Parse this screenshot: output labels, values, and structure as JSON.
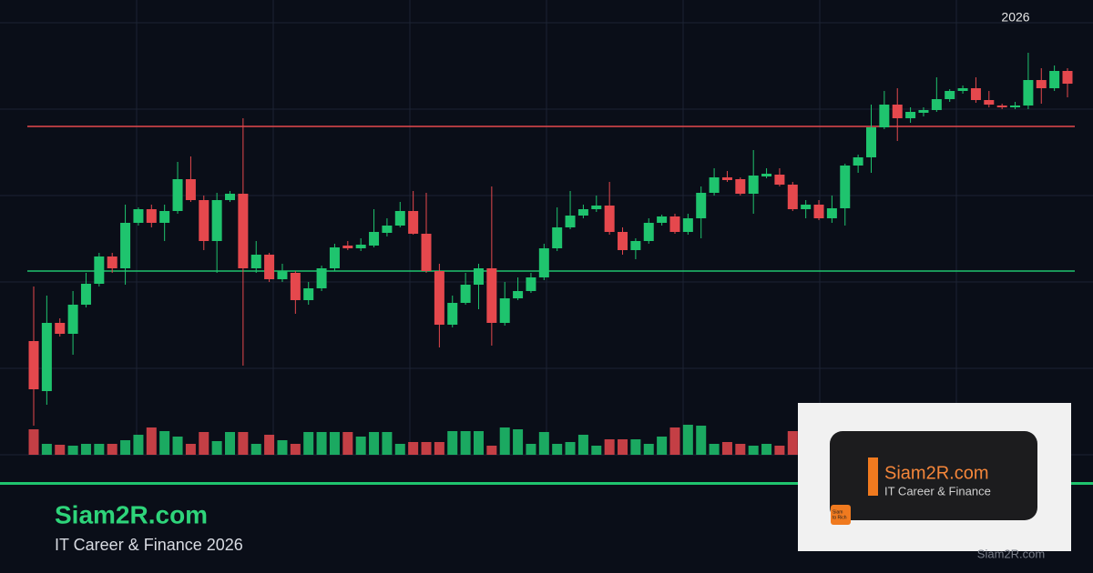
{
  "chart_data": {
    "type": "candlestick",
    "annotation": "2026",
    "up_color": "#1fc46e",
    "down_color": "#e5484d",
    "ylim": [
      0,
      470
    ],
    "volume_lim": [
      0,
      40
    ],
    "open": [
      95,
      40,
      115,
      103,
      135,
      158,
      188,
      175,
      225,
      240,
      225,
      238,
      273,
      250,
      205,
      250,
      257,
      175,
      190,
      163,
      170,
      140,
      153,
      175,
      200,
      197,
      200,
      214,
      222,
      238,
      213,
      172,
      113,
      137,
      157,
      175,
      115,
      142,
      150,
      165,
      197,
      220,
      233,
      240,
      244,
      215,
      195,
      205,
      225,
      232,
      215,
      230,
      258,
      275,
      273,
      257,
      276,
      278,
      267,
      240,
      245,
      230,
      241,
      288,
      297,
      330,
      355,
      340,
      346,
      349,
      361,
      370,
      373,
      360,
      354,
      352,
      354,
      382,
      373,
      392
    ],
    "high": [
      155,
      145,
      120,
      150,
      170,
      192,
      192,
      245,
      242,
      245,
      245,
      292,
      298,
      255,
      258,
      260,
      340,
      205,
      192,
      180,
      172,
      160,
      178,
      202,
      205,
      208,
      240,
      230,
      248,
      260,
      258,
      180,
      145,
      170,
      180,
      265,
      160,
      165,
      170,
      202,
      242,
      260,
      245,
      255,
      270,
      220,
      208,
      230,
      234,
      235,
      235,
      265,
      285,
      282,
      275,
      305,
      285,
      285,
      270,
      250,
      250,
      255,
      290,
      300,
      355,
      370,
      373,
      352,
      352,
      385,
      372,
      376,
      385,
      370,
      356,
      358,
      412,
      395,
      398,
      395
    ],
    "low": [
      2,
      25,
      100,
      80,
      132,
      155,
      170,
      157,
      222,
      220,
      205,
      235,
      248,
      195,
      170,
      248,
      68,
      170,
      160,
      160,
      125,
      135,
      150,
      172,
      195,
      194,
      198,
      210,
      220,
      212,
      170,
      88,
      110,
      135,
      130,
      90,
      112,
      140,
      148,
      162,
      194,
      218,
      230,
      237,
      212,
      190,
      185,
      202,
      222,
      213,
      212,
      208,
      255,
      270,
      255,
      235,
      274,
      265,
      238,
      230,
      228,
      225,
      222,
      280,
      280,
      328,
      315,
      335,
      342,
      347,
      358,
      367,
      357,
      352,
      350,
      350,
      350,
      356,
      370,
      363
    ],
    "close": [
      42,
      115,
      103,
      135,
      158,
      188,
      175,
      225,
      240,
      225,
      238,
      273,
      250,
      205,
      250,
      257,
      175,
      190,
      163,
      172,
      140,
      153,
      175,
      198,
      197,
      201,
      215,
      222,
      238,
      213,
      172,
      113,
      137,
      157,
      175,
      115,
      142,
      150,
      165,
      197,
      220,
      233,
      240,
      244,
      215,
      195,
      205,
      225,
      232,
      215,
      230,
      258,
      275,
      272,
      257,
      277,
      279,
      267,
      240,
      245,
      230,
      241,
      288,
      297,
      330,
      355,
      340,
      347,
      349,
      361,
      370,
      373,
      360,
      355,
      352,
      354,
      382,
      373,
      392,
      378
    ],
    "volume": [
      28,
      12,
      11,
      10,
      12,
      12,
      12,
      16,
      22,
      30,
      26,
      20,
      12,
      25,
      15,
      25,
      25,
      12,
      22,
      16,
      12,
      25,
      25,
      25,
      25,
      20,
      25,
      25,
      12,
      14,
      14,
      14,
      26,
      26,
      26,
      10,
      30,
      28,
      12,
      25,
      12,
      14,
      22,
      10,
      17,
      17,
      17,
      12,
      20,
      30,
      33,
      32,
      12,
      14,
      12,
      10,
      12,
      10,
      26,
      null,
      null,
      null,
      null,
      null,
      null,
      null,
      null,
      null,
      null,
      null,
      null,
      null,
      null,
      null,
      null,
      null,
      null,
      null,
      null,
      null
    ],
    "levels": [
      {
        "value": 331,
        "color": "#e5484d"
      },
      {
        "value": 172,
        "color": "#1fc46e"
      }
    ]
  },
  "brand": {
    "name": "Siam2R.com",
    "tagline": "IT Career & Finance 2026",
    "footer": "Siam2R.com"
  },
  "logo": {
    "name": "Siam2R.com",
    "tagline": "IT Career & Finance",
    "badge": [
      "Siam",
      "to Rich"
    ]
  }
}
